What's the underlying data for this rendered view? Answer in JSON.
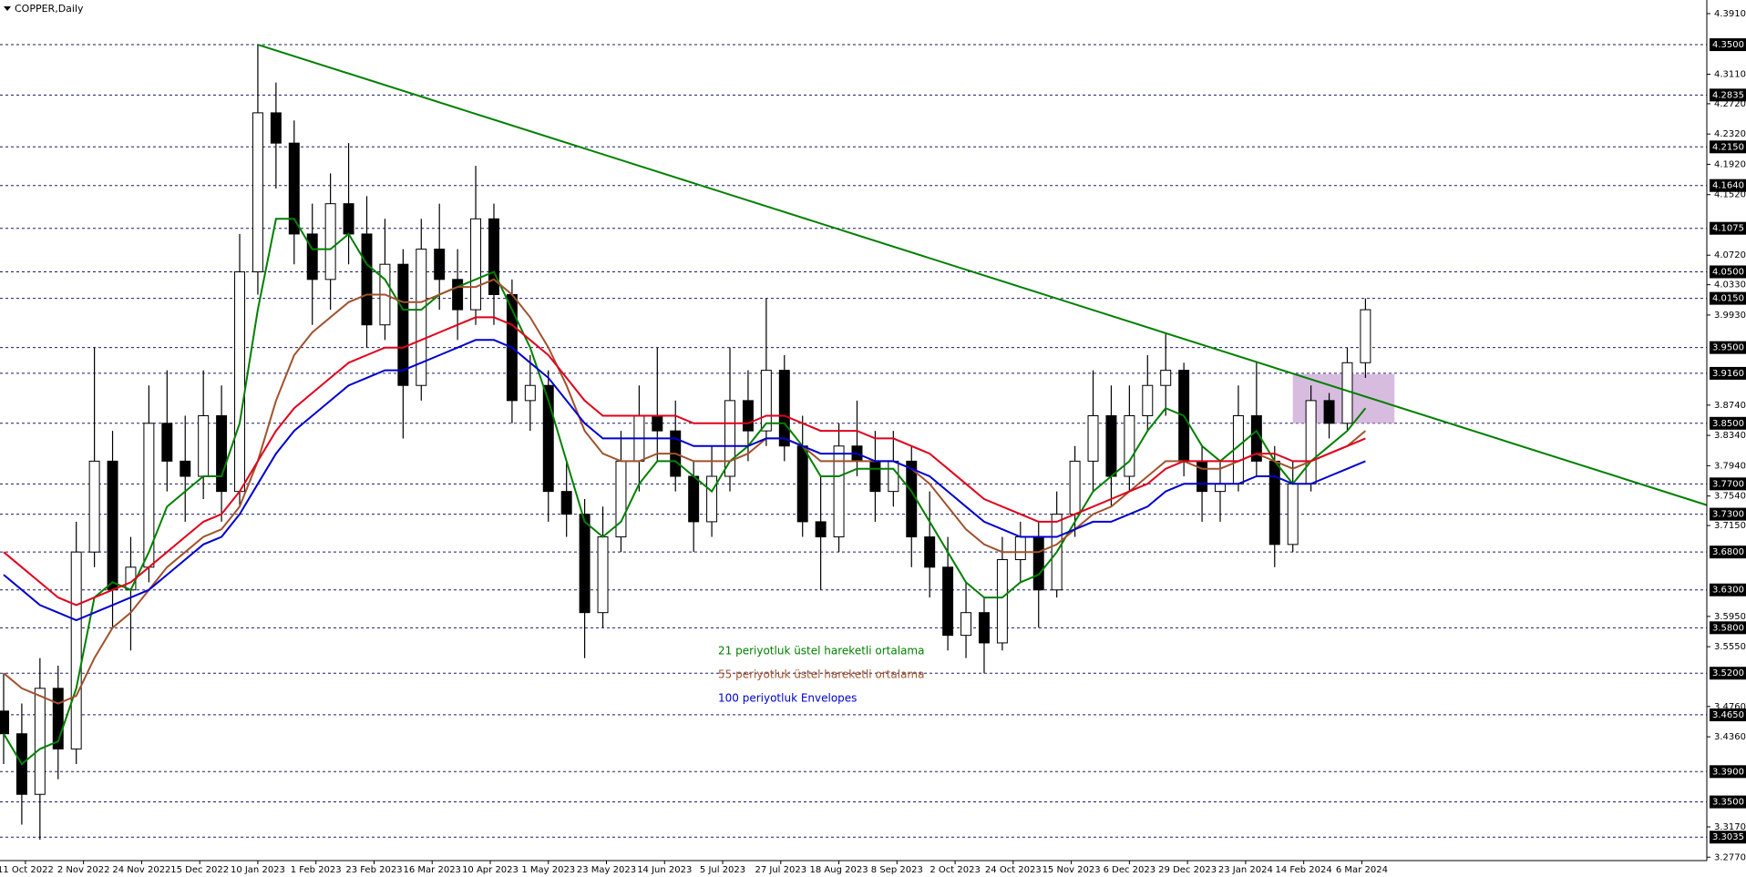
{
  "chart_data": {
    "type": "candlestick",
    "title": "COPPER,Daily",
    "x": [
      0,
      5,
      10,
      15,
      20,
      25,
      30,
      35,
      40,
      45,
      50,
      55,
      60,
      65,
      70,
      75,
      80,
      85,
      90,
      95,
      100,
      105,
      110,
      115,
      120,
      125,
      130,
      135,
      140,
      145,
      150,
      155,
      160,
      165,
      170,
      175,
      180,
      185,
      190,
      195,
      200,
      205,
      210,
      215,
      220,
      225,
      230,
      235,
      240,
      245,
      250,
      255,
      260,
      265,
      270,
      275,
      280,
      285,
      290,
      295,
      300,
      305,
      310,
      315,
      320,
      325,
      330,
      335,
      340,
      345,
      350,
      355,
      360,
      365,
      370,
      375
    ],
    "open": [
      3.47,
      3.44,
      3.36,
      3.5,
      3.42,
      3.68,
      3.8,
      3.63,
      3.66,
      3.85,
      3.8,
      3.78,
      3.86,
      3.76,
      4.05,
      4.26,
      4.22,
      4.1,
      4.04,
      4.14,
      4.1,
      3.98,
      4.06,
      3.9,
      4.08,
      4.04,
      4.0,
      4.12,
      4.02,
      3.88,
      3.9,
      3.76,
      3.73,
      3.6,
      3.7,
      3.8,
      3.86,
      3.84,
      3.78,
      3.72,
      3.78,
      3.88,
      3.84,
      3.92,
      3.82,
      3.72,
      3.7,
      3.82,
      3.8,
      3.76,
      3.8,
      3.7,
      3.66,
      3.57,
      3.6,
      3.56,
      3.67,
      3.7,
      3.63,
      3.73,
      3.8,
      3.86,
      3.78,
      3.86,
      3.9,
      3.92,
      3.8,
      3.76,
      3.77,
      3.86,
      3.8,
      3.69,
      3.77,
      3.88,
      3.85,
      3.93
    ],
    "high": [
      3.52,
      3.48,
      3.54,
      3.53,
      3.72,
      3.95,
      3.84,
      3.7,
      3.9,
      3.92,
      3.86,
      3.92,
      3.9,
      4.1,
      4.35,
      4.3,
      4.25,
      4.14,
      4.18,
      4.22,
      4.15,
      4.12,
      4.08,
      4.12,
      4.14,
      4.08,
      4.19,
      4.14,
      4.04,
      3.94,
      3.92,
      3.8,
      3.75,
      3.74,
      3.84,
      3.9,
      3.95,
      3.88,
      3.8,
      3.82,
      3.95,
      3.92,
      4.015,
      3.94,
      3.86,
      3.78,
      3.85,
      3.88,
      3.84,
      3.84,
      3.82,
      3.76,
      3.7,
      3.64,
      3.62,
      3.7,
      3.72,
      3.72,
      3.76,
      3.82,
      3.92,
      3.9,
      3.9,
      3.94,
      3.97,
      3.93,
      3.82,
      3.8,
      3.9,
      3.93,
      3.82,
      3.8,
      3.9,
      3.89,
      3.95,
      4.015
    ],
    "low": [
      3.4,
      3.32,
      3.3,
      3.38,
      3.4,
      3.66,
      3.58,
      3.55,
      3.64,
      3.76,
      3.72,
      3.75,
      3.72,
      3.74,
      4.02,
      4.16,
      4.06,
      3.98,
      4.0,
      4.06,
      3.95,
      3.96,
      3.83,
      3.88,
      4.0,
      3.96,
      3.98,
      3.98,
      3.85,
      3.84,
      3.72,
      3.7,
      3.54,
      3.58,
      3.68,
      3.76,
      3.8,
      3.76,
      3.68,
      3.7,
      3.76,
      3.8,
      3.82,
      3.8,
      3.7,
      3.63,
      3.68,
      3.78,
      3.72,
      3.74,
      3.66,
      3.62,
      3.55,
      3.54,
      3.52,
      3.55,
      3.64,
      3.58,
      3.62,
      3.7,
      3.76,
      3.74,
      3.76,
      3.84,
      3.86,
      3.78,
      3.72,
      3.72,
      3.76,
      3.78,
      3.66,
      3.68,
      3.76,
      3.83,
      3.84,
      3.91
    ],
    "close": [
      3.44,
      3.36,
      3.5,
      3.42,
      3.68,
      3.8,
      3.63,
      3.66,
      3.85,
      3.8,
      3.78,
      3.86,
      3.76,
      4.05,
      4.26,
      4.22,
      4.1,
      4.04,
      4.14,
      4.1,
      3.98,
      4.06,
      3.9,
      4.08,
      4.04,
      4.0,
      4.12,
      4.02,
      3.88,
      3.9,
      3.76,
      3.73,
      3.6,
      3.7,
      3.8,
      3.86,
      3.84,
      3.78,
      3.72,
      3.78,
      3.88,
      3.84,
      3.92,
      3.82,
      3.72,
      3.7,
      3.82,
      3.8,
      3.76,
      3.8,
      3.7,
      3.66,
      3.57,
      3.6,
      3.56,
      3.67,
      3.7,
      3.63,
      3.73,
      3.8,
      3.86,
      3.78,
      3.86,
      3.9,
      3.92,
      3.8,
      3.76,
      3.77,
      3.86,
      3.8,
      3.69,
      3.77,
      3.88,
      3.85,
      3.93,
      4.0
    ],
    "series": [
      {
        "name": "21 periyotluk üstel hareketli ortalama",
        "color": "#008000",
        "values": [
          3.44,
          3.4,
          3.42,
          3.43,
          3.5,
          3.62,
          3.64,
          3.63,
          3.68,
          3.74,
          3.76,
          3.78,
          3.78,
          3.85,
          4.0,
          4.12,
          4.12,
          4.08,
          4.08,
          4.1,
          4.06,
          4.04,
          4.0,
          4.0,
          4.02,
          4.03,
          4.04,
          4.05,
          4.0,
          3.95,
          3.88,
          3.8,
          3.72,
          3.7,
          3.72,
          3.77,
          3.8,
          3.8,
          3.78,
          3.76,
          3.8,
          3.82,
          3.85,
          3.85,
          3.82,
          3.78,
          3.78,
          3.79,
          3.79,
          3.79,
          3.76,
          3.72,
          3.68,
          3.64,
          3.62,
          3.62,
          3.64,
          3.65,
          3.68,
          3.72,
          3.76,
          3.78,
          3.8,
          3.84,
          3.87,
          3.86,
          3.82,
          3.8,
          3.82,
          3.84,
          3.8,
          3.77,
          3.8,
          3.82,
          3.84,
          3.87
        ]
      },
      {
        "name": "55 periyotluk üstel hareketli ortalama",
        "color": "#a0522d",
        "values": [
          3.52,
          3.5,
          3.49,
          3.48,
          3.49,
          3.54,
          3.58,
          3.6,
          3.63,
          3.66,
          3.68,
          3.7,
          3.71,
          3.74,
          3.8,
          3.88,
          3.94,
          3.97,
          3.99,
          4.01,
          4.02,
          4.02,
          4.01,
          4.01,
          4.02,
          4.03,
          4.03,
          4.04,
          4.02,
          3.99,
          3.95,
          3.9,
          3.84,
          3.81,
          3.8,
          3.8,
          3.81,
          3.81,
          3.8,
          3.8,
          3.8,
          3.81,
          3.83,
          3.83,
          3.82,
          3.8,
          3.8,
          3.8,
          3.8,
          3.8,
          3.79,
          3.77,
          3.74,
          3.71,
          3.69,
          3.68,
          3.68,
          3.68,
          3.69,
          3.71,
          3.73,
          3.74,
          3.76,
          3.78,
          3.8,
          3.8,
          3.79,
          3.79,
          3.8,
          3.81,
          3.8,
          3.79,
          3.8,
          3.81,
          3.82,
          3.84
        ]
      },
      {
        "name": "100 periyotluk Envelopes",
        "color": "#0000cd",
        "upper_color": "#e0001b",
        "upper_values": [
          3.68,
          3.66,
          3.64,
          3.62,
          3.61,
          3.62,
          3.63,
          3.64,
          3.66,
          3.68,
          3.7,
          3.72,
          3.73,
          3.76,
          3.8,
          3.84,
          3.87,
          3.89,
          3.91,
          3.93,
          3.94,
          3.95,
          3.95,
          3.96,
          3.97,
          3.98,
          3.99,
          3.99,
          3.98,
          3.96,
          3.94,
          3.91,
          3.88,
          3.86,
          3.86,
          3.86,
          3.86,
          3.86,
          3.85,
          3.85,
          3.85,
          3.85,
          3.86,
          3.86,
          3.85,
          3.84,
          3.84,
          3.84,
          3.83,
          3.83,
          3.82,
          3.81,
          3.79,
          3.77,
          3.75,
          3.74,
          3.73,
          3.72,
          3.72,
          3.73,
          3.74,
          3.75,
          3.76,
          3.77,
          3.79,
          3.8,
          3.8,
          3.8,
          3.8,
          3.81,
          3.81,
          3.8,
          3.8,
          3.81,
          3.82,
          3.83
        ],
        "values": [
          3.65,
          3.63,
          3.61,
          3.6,
          3.59,
          3.6,
          3.61,
          3.62,
          3.63,
          3.65,
          3.67,
          3.69,
          3.7,
          3.73,
          3.77,
          3.81,
          3.84,
          3.86,
          3.88,
          3.9,
          3.91,
          3.92,
          3.92,
          3.93,
          3.94,
          3.95,
          3.96,
          3.96,
          3.95,
          3.93,
          3.91,
          3.88,
          3.85,
          3.83,
          3.83,
          3.83,
          3.83,
          3.83,
          3.82,
          3.82,
          3.82,
          3.82,
          3.83,
          3.83,
          3.82,
          3.81,
          3.81,
          3.81,
          3.8,
          3.8,
          3.79,
          3.78,
          3.76,
          3.74,
          3.72,
          3.71,
          3.7,
          3.7,
          3.7,
          3.71,
          3.72,
          3.72,
          3.73,
          3.74,
          3.76,
          3.77,
          3.77,
          3.77,
          3.77,
          3.78,
          3.78,
          3.77,
          3.77,
          3.78,
          3.79,
          3.8
        ]
      }
    ],
    "trendline": {
      "color": "#008000",
      "x": [
        70,
        469
      ],
      "y": [
        4.35,
        3.742
      ]
    },
    "zone": {
      "color": "#c8a0d2",
      "x": [
        355,
        383
      ],
      "y": [
        3.85,
        3.915
      ]
    },
    "xlim": [
      -1,
      469
    ],
    "ylim": [
      3.2725,
      4.409
    ],
    "xticks": [
      {
        "value": 6,
        "label": "11 Oct 2022"
      },
      {
        "value": 22,
        "label": "2 Nov 2022"
      },
      {
        "value": 38,
        "label": "24 Nov 2022"
      },
      {
        "value": 54,
        "label": "15 Dec 2022"
      },
      {
        "value": 70,
        "label": "10 Jan 2023"
      },
      {
        "value": 86,
        "label": "1 Feb 2023"
      },
      {
        "value": 102,
        "label": "23 Feb 2023"
      },
      {
        "value": 118,
        "label": "16 Mar 2023"
      },
      {
        "value": 134,
        "label": "10 Apr 2023"
      },
      {
        "value": 150,
        "label": "1 May 2023"
      },
      {
        "value": 166,
        "label": "23 May 2023"
      },
      {
        "value": 182,
        "label": "14 Jun 2023"
      },
      {
        "value": 198,
        "label": "5 Jul 2023"
      },
      {
        "value": 214,
        "label": "27 Jul 2023"
      },
      {
        "value": 230,
        "label": "18 Aug 2023"
      },
      {
        "value": 246,
        "label": "8 Sep 2023"
      },
      {
        "value": 262,
        "label": "2 Oct 2023"
      },
      {
        "value": 278,
        "label": "24 Oct 2023"
      },
      {
        "value": 294,
        "label": "15 Nov 2023"
      },
      {
        "value": 310,
        "label": "6 Dec 2023"
      },
      {
        "value": 326,
        "label": "29 Dec 2023"
      },
      {
        "value": 342,
        "label": "23 Jan 2024"
      },
      {
        "value": 358,
        "label": "14 Feb 2024"
      },
      {
        "value": 374,
        "label": "6 Mar 2024"
      }
    ],
    "yticks": [
      {
        "value": 4.391,
        "label": "4.3910"
      },
      {
        "value": 4.311,
        "label": "4.3110"
      },
      {
        "value": 4.272,
        "label": "4.2720"
      },
      {
        "value": 4.232,
        "label": "4.2320"
      },
      {
        "value": 4.192,
        "label": "4.1920"
      },
      {
        "value": 4.152,
        "label": "4.1520"
      },
      {
        "value": 4.072,
        "label": "4.0720"
      },
      {
        "value": 4.033,
        "label": "4.0330"
      },
      {
        "value": 3.993,
        "label": "3.9930"
      },
      {
        "value": 3.874,
        "label": "3.8740"
      },
      {
        "value": 3.834,
        "label": "3.8340"
      },
      {
        "value": 3.794,
        "label": "3.7940"
      },
      {
        "value": 3.754,
        "label": "3.7540"
      },
      {
        "value": 3.715,
        "label": "3.7150"
      },
      {
        "value": 3.595,
        "label": "3.5950"
      },
      {
        "value": 3.555,
        "label": "3.5550"
      },
      {
        "value": 3.476,
        "label": "3.4760"
      },
      {
        "value": 3.436,
        "label": "3.4360"
      },
      {
        "value": 3.317,
        "label": "3.3170"
      },
      {
        "value": 3.277,
        "label": "3.2770"
      }
    ],
    "levels": [
      {
        "value": 4.35,
        "label": "4.3500"
      },
      {
        "value": 4.2835,
        "label": "4.2835"
      },
      {
        "value": 4.215,
        "label": "4.2150"
      },
      {
        "value": 4.164,
        "label": "4.1640"
      },
      {
        "value": 4.1075,
        "label": "4.1075"
      },
      {
        "value": 4.05,
        "label": "4.0500"
      },
      {
        "value": 4.015,
        "label": "4.0150"
      },
      {
        "value": 3.95,
        "label": "3.9500"
      },
      {
        "value": 3.916,
        "label": "3.9160"
      },
      {
        "value": 3.85,
        "label": "3.8500"
      },
      {
        "value": 3.77,
        "label": "3.7700"
      },
      {
        "value": 3.73,
        "label": "3.7300"
      },
      {
        "value": 3.68,
        "label": "3.6800"
      },
      {
        "value": 3.63,
        "label": "3.6300"
      },
      {
        "value": 3.58,
        "label": "3.5800"
      },
      {
        "value": 3.52,
        "label": "3.5200"
      },
      {
        "value": 3.465,
        "label": "3.4650"
      },
      {
        "value": 3.39,
        "label": "3.3900"
      },
      {
        "value": 3.35,
        "label": "3.3500"
      },
      {
        "value": 3.3035,
        "label": "3.3035"
      }
    ]
  }
}
